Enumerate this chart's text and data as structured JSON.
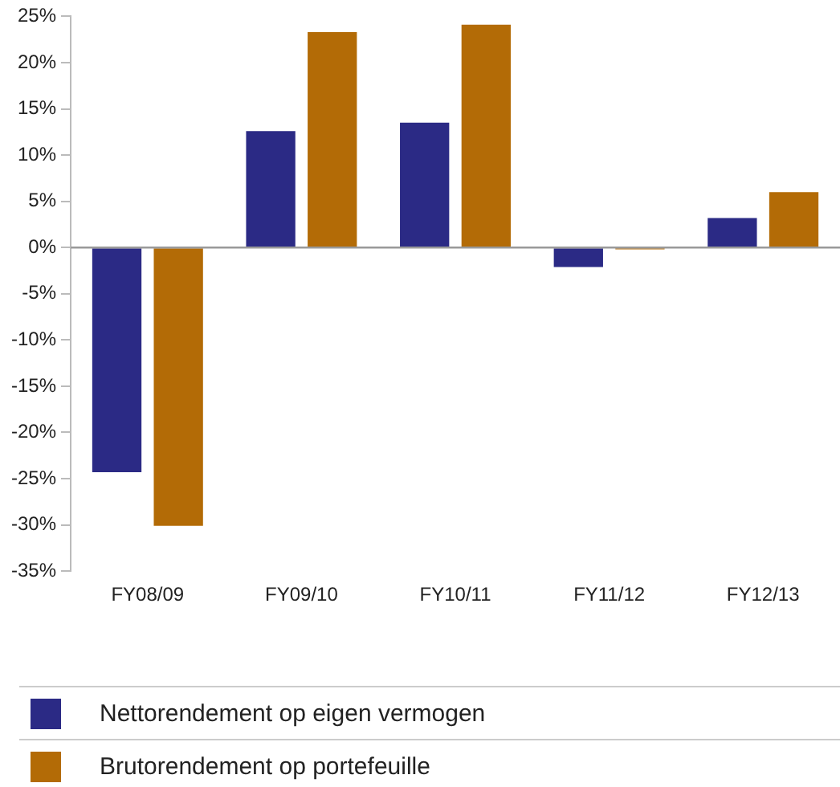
{
  "chart_data": {
    "type": "bar",
    "categories": [
      "FY08/09",
      "FY09/10",
      "FY10/11",
      "FY11/12",
      "FY12/13"
    ],
    "series": [
      {
        "name": "Nettorendement op eigen vermogen",
        "color": "#2b2a85",
        "values": [
          -24.3,
          12.6,
          13.5,
          -2.1,
          3.2
        ]
      },
      {
        "name": "Brutorendement op portefeuille",
        "color": "#b36b06",
        "values": [
          -30.1,
          23.3,
          24.1,
          -0.2,
          6.0
        ]
      }
    ],
    "ylim": [
      -35,
      25
    ],
    "yticks": [
      {
        "value": -35,
        "label": "-35%"
      },
      {
        "value": -30,
        "label": "-30%"
      },
      {
        "value": -25,
        "label": "-25%"
      },
      {
        "value": -20,
        "label": "-20%"
      },
      {
        "value": -15,
        "label": "-15%"
      },
      {
        "value": -10,
        "label": "-10%"
      },
      {
        "value": -5,
        "label": "-5%"
      },
      {
        "value": 0,
        "label": "0%"
      },
      {
        "value": 5,
        "label": "5%"
      },
      {
        "value": 10,
        "label": "10%"
      },
      {
        "value": 15,
        "label": "15%"
      },
      {
        "value": 20,
        "label": "20%"
      },
      {
        "value": 25,
        "label": "25%"
      }
    ],
    "ref_lines": [
      {
        "axis": "y",
        "value": 0,
        "color": "#999999"
      }
    ],
    "grid": false,
    "legend": "bottom"
  }
}
